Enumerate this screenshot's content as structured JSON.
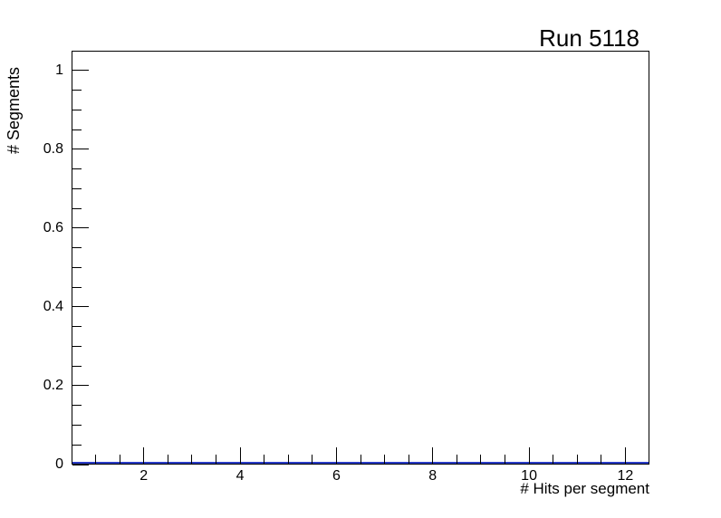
{
  "window": {
    "background": "#ffffff"
  },
  "chart_data": {
    "type": "histogram",
    "title": "Run 5118",
    "xlabel": "# Hits per segment",
    "ylabel": "# Segments",
    "xlim": [
      0.5,
      12.5
    ],
    "ylim": [
      0,
      1.05
    ],
    "grid": false,
    "frame_color": "#000000",
    "x_axis": {
      "major_ticks": [
        {
          "value": 2,
          "label": "2"
        },
        {
          "value": 4,
          "label": "4"
        },
        {
          "value": 6,
          "label": "6"
        },
        {
          "value": 8,
          "label": "8"
        },
        {
          "value": 10,
          "label": "10"
        },
        {
          "value": 12,
          "label": "12"
        }
      ],
      "minor_tick_step": 0.5
    },
    "y_axis": {
      "major_ticks": [
        {
          "value": 0,
          "label": "0"
        },
        {
          "value": 0.2,
          "label": "0.2"
        },
        {
          "value": 0.4,
          "label": "0.4"
        },
        {
          "value": 0.6,
          "label": "0.6"
        },
        {
          "value": 0.8,
          "label": "0.8"
        },
        {
          "value": 1,
          "label": "1"
        }
      ],
      "minor_tick_step": 0.05
    },
    "series": [
      {
        "name": "hits_per_segment_histogram",
        "color": "#2a3cc8",
        "bin_centers": [
          1,
          2,
          3,
          4,
          5,
          6,
          7,
          8,
          9,
          10,
          11,
          12
        ],
        "values": [
          0,
          0,
          0,
          0,
          0,
          0,
          0,
          0,
          0,
          0,
          0,
          0
        ]
      }
    ]
  }
}
